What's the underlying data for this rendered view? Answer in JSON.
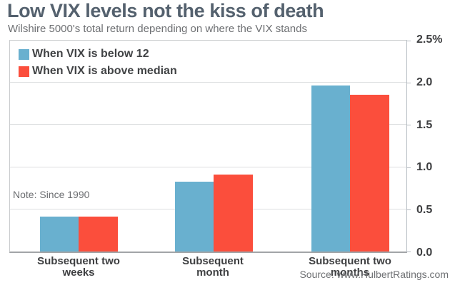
{
  "header": {
    "title": "Low VIX levels not the kiss of death",
    "subtitle": "Wilshire 5000's total return depending on where the VIX stands"
  },
  "legend": {
    "items": [
      {
        "label": "When VIX is below 12",
        "color": "#69b0cf"
      },
      {
        "label": "When VIX is above median",
        "color": "#fb4e3c"
      }
    ]
  },
  "note": "Note: Since 1990",
  "source": "Source: www.HulbertRatings.com",
  "chart_data": {
    "type": "bar",
    "categories": [
      "Subsequent two weeks",
      "Subsequent month",
      "Subsequent two months"
    ],
    "category_lines": [
      [
        "Subsequent two",
        "weeks"
      ],
      [
        "Subsequent",
        "month"
      ],
      [
        "Subsequent two",
        "months"
      ]
    ],
    "series": [
      {
        "name": "When VIX is below 12",
        "color": "#69b0cf",
        "values": [
          0.41,
          0.83,
          1.97
        ]
      },
      {
        "name": "When VIX is above median",
        "color": "#fb4e3c",
        "values": [
          0.41,
          0.91,
          1.86
        ]
      }
    ],
    "title": "Low VIX levels not the kiss of death",
    "xlabel": "",
    "ylabel": "",
    "ylim": [
      0,
      2.5
    ],
    "ytick_labels": [
      "0.0",
      "0.5",
      "1.0",
      "1.5",
      "2.0",
      "2.5%"
    ],
    "grid": true,
    "legend_position": "top-left",
    "axis_side": "right"
  }
}
